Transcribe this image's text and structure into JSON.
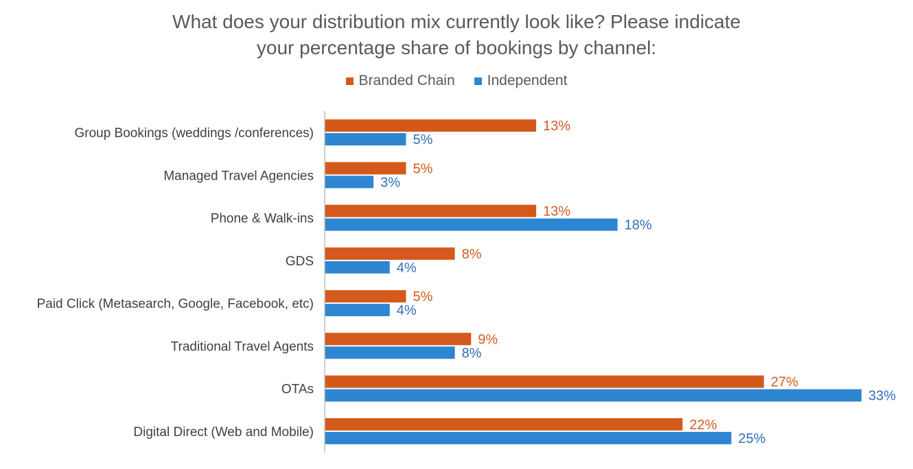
{
  "chart_data": {
    "type": "bar",
    "orientation": "horizontal",
    "title_line1": "What does your distribution mix currently look like? Please indicate",
    "title_line2": "your percentage share of bookings by channel:",
    "categories": [
      "Group Bookings (weddings /conferences)",
      "Managed Travel Agencies",
      "Phone & Walk-ins",
      "GDS",
      "Paid Click (Metasearch, Google, Facebook, etc)",
      "Traditional Travel Agents",
      "OTAs",
      "Digital Direct (Web and Mobile)"
    ],
    "series": [
      {
        "name": "Branded Chain",
        "color": "#D35A1C",
        "values": [
          13,
          5,
          13,
          8,
          5,
          9,
          27,
          22
        ],
        "labels": [
          "13%",
          "5%",
          "13%",
          "8%",
          "5%",
          "9%",
          "27%",
          "22%"
        ]
      },
      {
        "name": "Independent",
        "color": "#2E86D1",
        "values": [
          5,
          3,
          18,
          4,
          4,
          8,
          33,
          25
        ],
        "labels": [
          "5%",
          "3%",
          "18%",
          "4%",
          "4%",
          "8%",
          "33%",
          "25%"
        ]
      }
    ],
    "xlim": [
      0,
      34
    ],
    "legend_position": "top-center",
    "grid": false
  }
}
